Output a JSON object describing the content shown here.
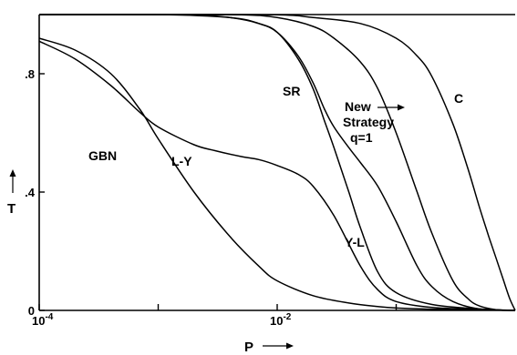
{
  "chart_data": {
    "type": "line",
    "xlabel": "P",
    "ylabel": "T",
    "xscale": "log",
    "xlim": [
      0.0001,
      1
    ],
    "ylim": [
      0,
      1
    ],
    "x_ticks": [
      {
        "value": 0.0001,
        "base": "10",
        "exp": "-4"
      },
      {
        "value": 0.001,
        "base": "",
        "exp": ""
      },
      {
        "value": 0.01,
        "base": "10",
        "exp": "-2"
      },
      {
        "value": 0.1,
        "base": "",
        "exp": ""
      }
    ],
    "y_ticks": [
      {
        "value": 0,
        "label": "0"
      },
      {
        "value": 0.4,
        "label": ".4"
      },
      {
        "value": 0.8,
        "label": ".8"
      }
    ],
    "grid": false,
    "series": [
      {
        "name": "GBN",
        "x": [
          0.0001,
          0.0002,
          0.0004,
          0.0007,
          0.001,
          0.002,
          0.004,
          0.007,
          0.01,
          0.02,
          0.04,
          0.07,
          0.1,
          0.2,
          0.5,
          1
        ],
        "y": [
          0.92,
          0.88,
          0.8,
          0.68,
          0.58,
          0.4,
          0.25,
          0.15,
          0.1,
          0.05,
          0.025,
          0.013,
          0.008,
          0.004,
          0.002,
          0.0
        ]
      },
      {
        "name": "L-Y",
        "x": [
          0.0001,
          0.0002,
          0.0004,
          0.0007,
          0.001,
          0.002,
          0.003,
          0.005,
          0.007,
          0.01,
          0.015,
          0.02,
          0.03,
          0.05,
          0.07,
          0.1,
          0.2,
          0.5,
          1
        ],
        "y": [
          0.91,
          0.85,
          0.76,
          0.67,
          0.62,
          0.56,
          0.54,
          0.52,
          0.51,
          0.49,
          0.46,
          0.42,
          0.32,
          0.15,
          0.07,
          0.03,
          0.01,
          0.003,
          0.0
        ]
      },
      {
        "name": "SR",
        "x": [
          0.0001,
          0.001,
          0.002,
          0.004,
          0.007,
          0.01,
          0.015,
          0.02,
          0.025,
          0.03,
          0.04,
          0.05,
          0.07,
          0.1,
          0.2,
          0.5,
          1
        ],
        "y": [
          1.0,
          1.0,
          0.998,
          0.99,
          0.97,
          0.94,
          0.85,
          0.75,
          0.64,
          0.55,
          0.4,
          0.28,
          0.13,
          0.06,
          0.02,
          0.005,
          0.0
        ]
      },
      {
        "name": "Y-L",
        "x": [
          0.0001,
          0.001,
          0.004,
          0.007,
          0.01,
          0.015,
          0.02,
          0.025,
          0.03,
          0.04,
          0.05,
          0.07,
          0.1,
          0.15,
          0.2,
          0.3,
          0.5,
          1
        ],
        "y": [
          1.0,
          1.0,
          0.99,
          0.97,
          0.94,
          0.86,
          0.77,
          0.68,
          0.62,
          0.55,
          0.5,
          0.42,
          0.3,
          0.15,
          0.08,
          0.03,
          0.005,
          0.0
        ]
      },
      {
        "name": "New Strategy q=1",
        "x": [
          0.0001,
          0.001,
          0.005,
          0.01,
          0.02,
          0.03,
          0.05,
          0.07,
          0.1,
          0.15,
          0.2,
          0.3,
          0.4,
          0.5,
          0.7,
          1
        ],
        "y": [
          1.0,
          1.0,
          0.999,
          0.99,
          0.96,
          0.92,
          0.84,
          0.75,
          0.6,
          0.4,
          0.26,
          0.1,
          0.04,
          0.015,
          0.002,
          0.0
        ]
      },
      {
        "name": "C",
        "x": [
          0.0001,
          0.001,
          0.01,
          0.02,
          0.05,
          0.1,
          0.15,
          0.2,
          0.3,
          0.4,
          0.5,
          0.6,
          0.7,
          0.8,
          0.9,
          1
        ],
        "y": [
          1.0,
          1.0,
          0.999,
          0.99,
          0.97,
          0.92,
          0.86,
          0.79,
          0.63,
          0.48,
          0.35,
          0.25,
          0.17,
          0.1,
          0.04,
          0.0
        ]
      }
    ],
    "curve_labels": [
      {
        "text": "GBN",
        "target": "GBN"
      },
      {
        "text": "L-Y",
        "target": "L-Y"
      },
      {
        "text": "SR",
        "target": "SR"
      },
      {
        "text": "Y-L",
        "target": "Y-L"
      },
      {
        "text": "New",
        "target": "New Strategy q=1"
      },
      {
        "text": "Strategy",
        "target": "New Strategy q=1"
      },
      {
        "text": "q=1",
        "target": "New Strategy q=1"
      },
      {
        "text": "C",
        "target": "C"
      }
    ]
  }
}
